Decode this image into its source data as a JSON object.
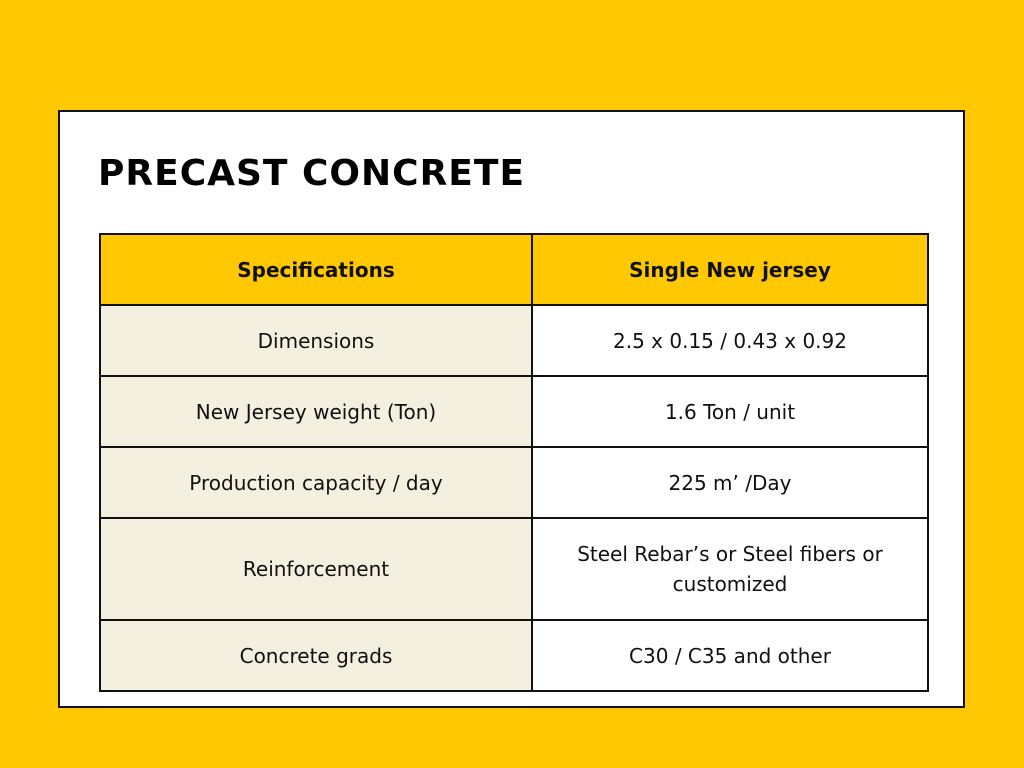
{
  "title": "PRECAST CONCRETE",
  "colors": {
    "background": "#FFC800",
    "header_fill": "#FFC800",
    "spec_cell_fill": "#F3F0E0",
    "value_cell_fill": "#FFFFFF",
    "border": "#111111"
  },
  "table": {
    "headers": [
      "Specifications",
      "Single New jersey"
    ],
    "rows": [
      {
        "spec": "Dimensions",
        "value": "2.5 x 0.15 / 0.43 x 0.92"
      },
      {
        "spec": "New Jersey weight (Ton)",
        "value": "1.6 Ton / unit"
      },
      {
        "spec": "Production capacity / day",
        "value": "225 m’ /Day"
      },
      {
        "spec": "Reinforcement",
        "value": "Steel Rebar’s or Steel fibers or customized"
      },
      {
        "spec": "Concrete grads",
        "value": "C30 / C35 and other"
      }
    ]
  }
}
